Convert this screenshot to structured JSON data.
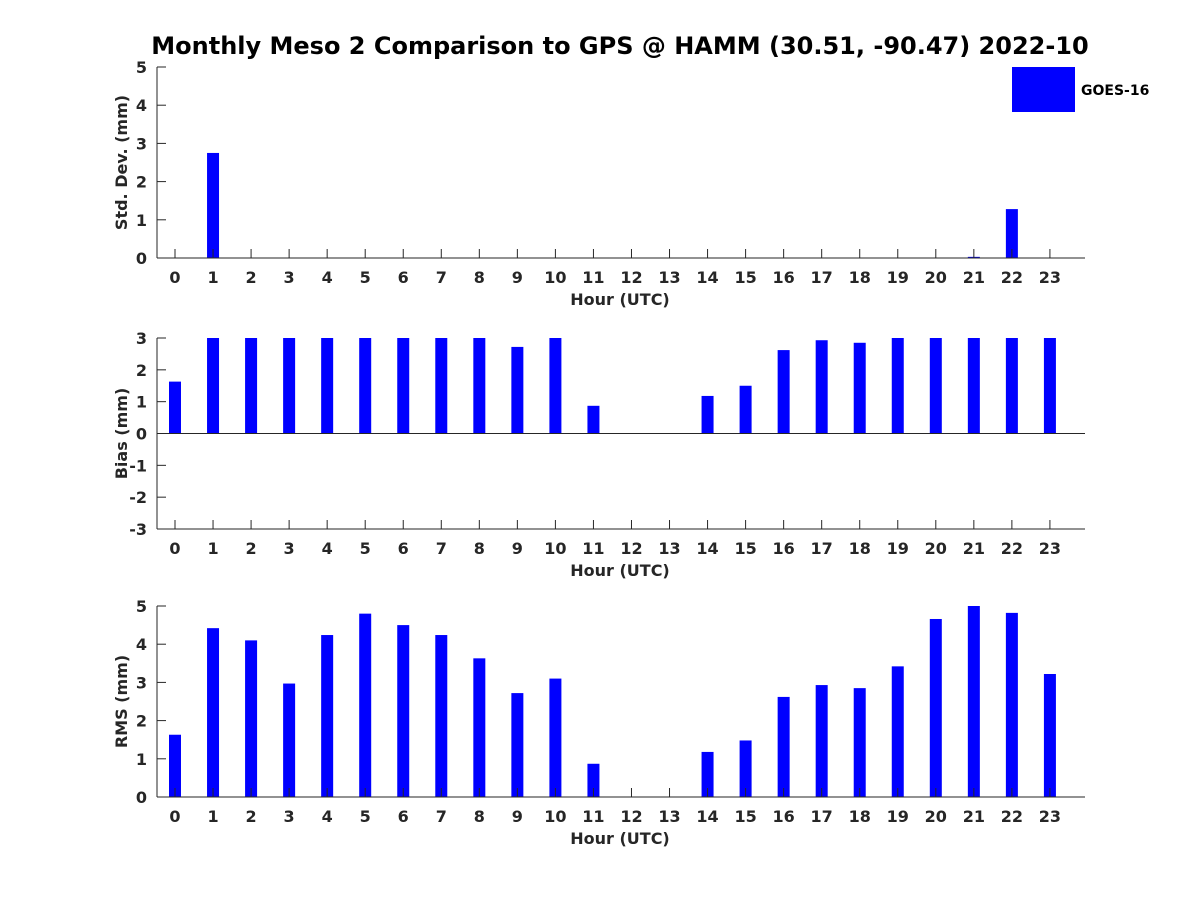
{
  "title": "Monthly Meso 2 Comparison to GPS @ HAMM (30.51, -90.47) 2022-10",
  "legend": {
    "label": "GOES-16",
    "color": "#0000ff",
    "placement": "top-right"
  },
  "chart_data": [
    {
      "type": "bar",
      "name": "std-dev",
      "xlabel": "Hour (UTC)",
      "ylabel": "Std. Dev. (mm)",
      "ylim": [
        0,
        5
      ],
      "yticks": [
        0,
        1,
        2,
        3,
        4,
        5
      ],
      "categories": [
        "0",
        "1",
        "2",
        "3",
        "4",
        "5",
        "6",
        "7",
        "8",
        "9",
        "10",
        "11",
        "12",
        "13",
        "14",
        "15",
        "16",
        "17",
        "18",
        "19",
        "20",
        "21",
        "22",
        "23"
      ],
      "series": [
        {
          "name": "GOES-16",
          "color": "#0000ff",
          "values": [
            0,
            2.75,
            0,
            0,
            0,
            0,
            0,
            0,
            0,
            0,
            0,
            0,
            0,
            0,
            0,
            0,
            0,
            0,
            0,
            0,
            0,
            0.03,
            1.28,
            0
          ]
        }
      ]
    },
    {
      "type": "bar",
      "name": "bias",
      "xlabel": "Hour (UTC)",
      "ylabel": "Bias (mm)",
      "ylim": [
        -3,
        3
      ],
      "yticks": [
        -3,
        -2,
        -1,
        0,
        1,
        2,
        3
      ],
      "categories": [
        "0",
        "1",
        "2",
        "3",
        "4",
        "5",
        "6",
        "7",
        "8",
        "9",
        "10",
        "11",
        "12",
        "13",
        "14",
        "15",
        "16",
        "17",
        "18",
        "19",
        "20",
        "21",
        "22",
        "23"
      ],
      "series": [
        {
          "name": "GOES-16",
          "color": "#0000ff",
          "values": [
            1.63,
            3.0,
            3.0,
            3.0,
            3.0,
            3.0,
            3.0,
            3.0,
            3.0,
            2.72,
            3.0,
            0.87,
            0,
            0,
            1.18,
            1.5,
            2.62,
            2.93,
            2.85,
            3.0,
            3.0,
            3.0,
            3.0,
            3.0
          ]
        }
      ]
    },
    {
      "type": "bar",
      "name": "rms",
      "xlabel": "Hour (UTC)",
      "ylabel": "RMS (mm)",
      "ylim": [
        0,
        5
      ],
      "yticks": [
        0,
        1,
        2,
        3,
        4,
        5
      ],
      "categories": [
        "0",
        "1",
        "2",
        "3",
        "4",
        "5",
        "6",
        "7",
        "8",
        "9",
        "10",
        "11",
        "12",
        "13",
        "14",
        "15",
        "16",
        "17",
        "18",
        "19",
        "20",
        "21",
        "22",
        "23"
      ],
      "series": [
        {
          "name": "GOES-16",
          "color": "#0000ff",
          "values": [
            1.63,
            4.42,
            4.1,
            2.97,
            4.24,
            4.8,
            4.5,
            4.24,
            3.63,
            2.72,
            3.1,
            0.87,
            0,
            0,
            1.18,
            1.48,
            2.62,
            2.93,
            2.85,
            3.42,
            4.66,
            5.0,
            4.82,
            3.22
          ]
        }
      ]
    }
  ]
}
